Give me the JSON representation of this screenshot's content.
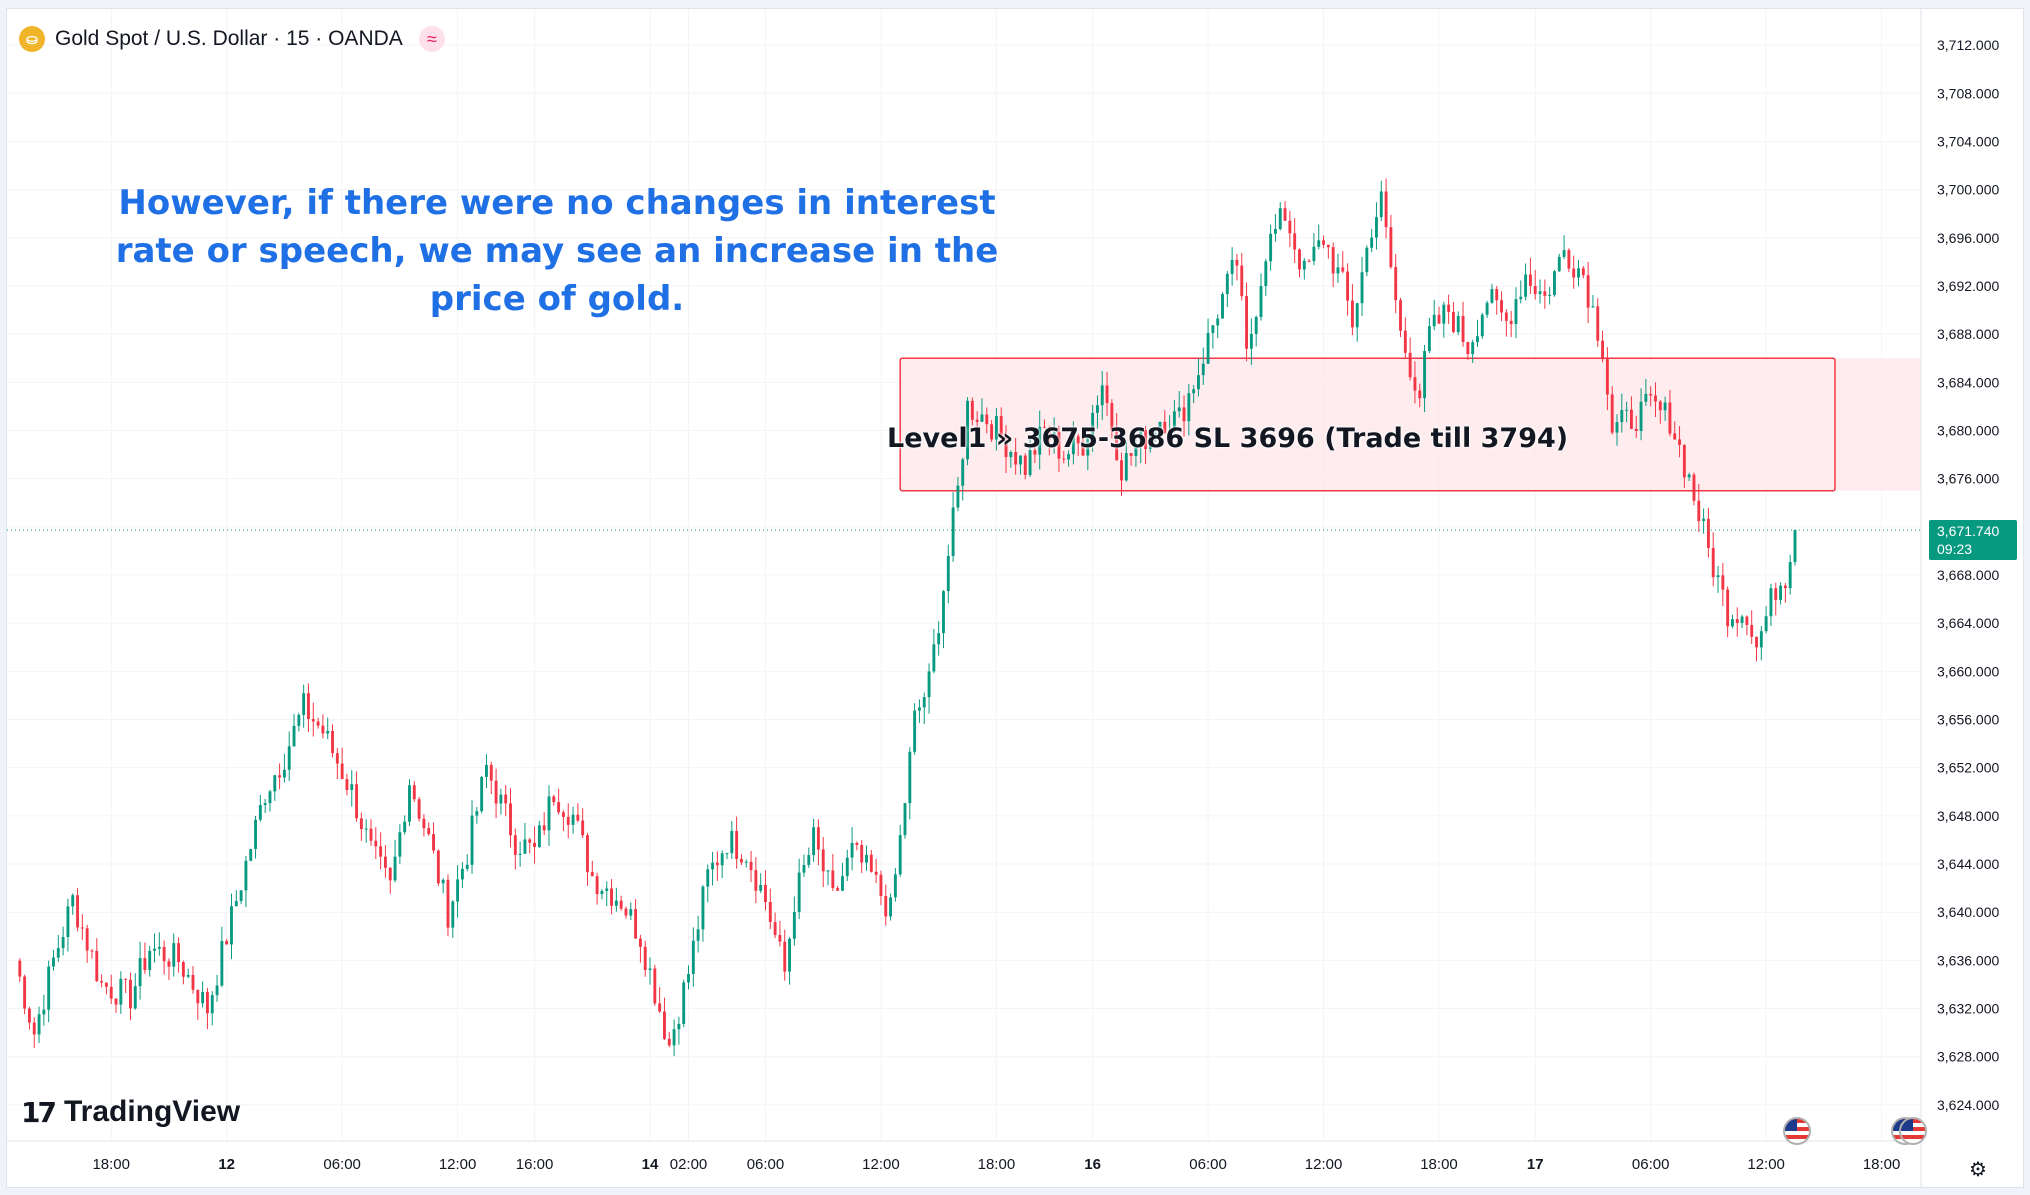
{
  "legend": {
    "symbol": "Gold Spot / U.S. Dollar · 15 · OANDA",
    "coin_icon": "gold-coin-icon",
    "indicator_icon": "wave-indicator-icon"
  },
  "annotation": {
    "comment": "However, if there were no changes in interest rate or speech, we may see an increase in the price of gold.",
    "zone_label": "Level1 » 3675-3686 SL 3696 (Trade till 3794)"
  },
  "branding": {
    "logo_text": "TradingView",
    "logo_mark": "17"
  },
  "price_tag": {
    "price": "3,671.740",
    "countdown": "09:23"
  },
  "colors": {
    "up": "#089981",
    "down": "#f23645",
    "zone_fill": "#fde6e8",
    "zone_border": "#f23645",
    "comment": "#1f6fe5",
    "grid": "#f0f3fa"
  },
  "chart_data": {
    "type": "candlestick",
    "symbol": "XAUUSD",
    "timeframe": "15",
    "ylim": [
      3621,
      3715
    ],
    "y_ticks": [
      "3,712.000",
      "3,708.000",
      "3,704.000",
      "3,700.000",
      "3,696.000",
      "3,692.000",
      "3,688.000",
      "3,684.000",
      "3,680.000",
      "3,676.000",
      "3,672.000",
      "3,668.000",
      "3,664.000",
      "3,660.000",
      "3,656.000",
      "3,652.000",
      "3,648.000",
      "3,644.000",
      "3,640.000",
      "3,636.000",
      "3,632.000",
      "3,628.000",
      "3,624.000"
    ],
    "x_ticks": [
      {
        "label": "18:00",
        "bar": 20,
        "bold": false
      },
      {
        "label": "12",
        "bar": 44,
        "bold": true
      },
      {
        "label": "06:00",
        "bar": 68,
        "bold": false
      },
      {
        "label": "12:00",
        "bar": 92,
        "bold": false
      },
      {
        "label": "16:00",
        "bar": 108,
        "bold": false
      },
      {
        "label": "14",
        "bar": 132,
        "bold": true
      },
      {
        "label": "02:00",
        "bar": 140,
        "bold": false
      },
      {
        "label": "06:00",
        "bar": 156,
        "bold": false
      },
      {
        "label": "12:00",
        "bar": 180,
        "bold": false
      },
      {
        "label": "18:00",
        "bar": 204,
        "bold": false
      },
      {
        "label": "16",
        "bar": 224,
        "bold": true
      },
      {
        "label": "06:00",
        "bar": 248,
        "bold": false
      },
      {
        "label": "12:00",
        "bar": 272,
        "bold": false
      },
      {
        "label": "18:00",
        "bar": 296,
        "bold": false
      },
      {
        "label": "17",
        "bar": 316,
        "bold": true
      },
      {
        "label": "06:00",
        "bar": 340,
        "bold": false
      },
      {
        "label": "12:00",
        "bar": 364,
        "bold": false
      },
      {
        "label": "18:00",
        "bar": 388,
        "bold": false
      }
    ],
    "close_path": [
      [
        0,
        3636
      ],
      [
        4,
        3630
      ],
      [
        8,
        3636
      ],
      [
        12,
        3641
      ],
      [
        18,
        3634
      ],
      [
        24,
        3633
      ],
      [
        28,
        3637
      ],
      [
        34,
        3636
      ],
      [
        40,
        3632
      ],
      [
        44,
        3638
      ],
      [
        48,
        3644
      ],
      [
        52,
        3650
      ],
      [
        56,
        3653
      ],
      [
        60,
        3657
      ],
      [
        64,
        3655
      ],
      [
        70,
        3650
      ],
      [
        74,
        3645
      ],
      [
        78,
        3642
      ],
      [
        82,
        3651
      ],
      [
        86,
        3646
      ],
      [
        90,
        3640
      ],
      [
        94,
        3645
      ],
      [
        98,
        3652
      ],
      [
        104,
        3646
      ],
      [
        108,
        3645
      ],
      [
        112,
        3650
      ],
      [
        116,
        3648
      ],
      [
        120,
        3643
      ],
      [
        126,
        3641
      ],
      [
        130,
        3638
      ],
      [
        134,
        3632
      ],
      [
        136,
        3629
      ],
      [
        140,
        3635
      ],
      [
        144,
        3643
      ],
      [
        148,
        3646
      ],
      [
        152,
        3645
      ],
      [
        156,
        3641
      ],
      [
        160,
        3635
      ],
      [
        162,
        3641
      ],
      [
        166,
        3646
      ],
      [
        170,
        3641
      ],
      [
        174,
        3645
      ],
      [
        178,
        3643
      ],
      [
        182,
        3640
      ],
      [
        184,
        3646
      ],
      [
        187,
        3656
      ],
      [
        190,
        3659
      ],
      [
        193,
        3667
      ],
      [
        196,
        3675
      ],
      [
        198,
        3682
      ],
      [
        202,
        3681
      ],
      [
        206,
        3679
      ],
      [
        210,
        3677
      ],
      [
        214,
        3680
      ],
      [
        218,
        3678
      ],
      [
        222,
        3679
      ],
      [
        226,
        3684
      ],
      [
        230,
        3677
      ],
      [
        234,
        3679
      ],
      [
        238,
        3681
      ],
      [
        242,
        3681
      ],
      [
        246,
        3685
      ],
      [
        250,
        3690
      ],
      [
        254,
        3694
      ],
      [
        256,
        3686
      ],
      [
        260,
        3695
      ],
      [
        264,
        3698
      ],
      [
        268,
        3693
      ],
      [
        272,
        3696
      ],
      [
        276,
        3692
      ],
      [
        278,
        3689
      ],
      [
        282,
        3697
      ],
      [
        284,
        3699
      ],
      [
        288,
        3688
      ],
      [
        292,
        3683
      ],
      [
        294,
        3688
      ],
      [
        298,
        3690
      ],
      [
        302,
        3687
      ],
      [
        306,
        3691
      ],
      [
        310,
        3689
      ],
      [
        314,
        3693
      ],
      [
        318,
        3691
      ],
      [
        322,
        3695
      ],
      [
        326,
        3693
      ],
      [
        330,
        3687
      ],
      [
        332,
        3680
      ],
      [
        336,
        3681
      ],
      [
        340,
        3682
      ],
      [
        344,
        3681
      ],
      [
        348,
        3676
      ],
      [
        352,
        3670
      ],
      [
        356,
        3665
      ],
      [
        360,
        3665
      ],
      [
        362,
        3662
      ],
      [
        366,
        3667
      ],
      [
        368,
        3668
      ],
      [
        370,
        3672
      ]
    ],
    "last_price": 3671.74,
    "current_price_line": 3671.74,
    "zone": {
      "bar_start": 184,
      "low": 3675,
      "high": 3686,
      "label": "Level1 » 3675-3686 SL 3696 (Trade till 3794)"
    },
    "events": [
      "us-flag-icon",
      "us-flag-icon"
    ]
  }
}
